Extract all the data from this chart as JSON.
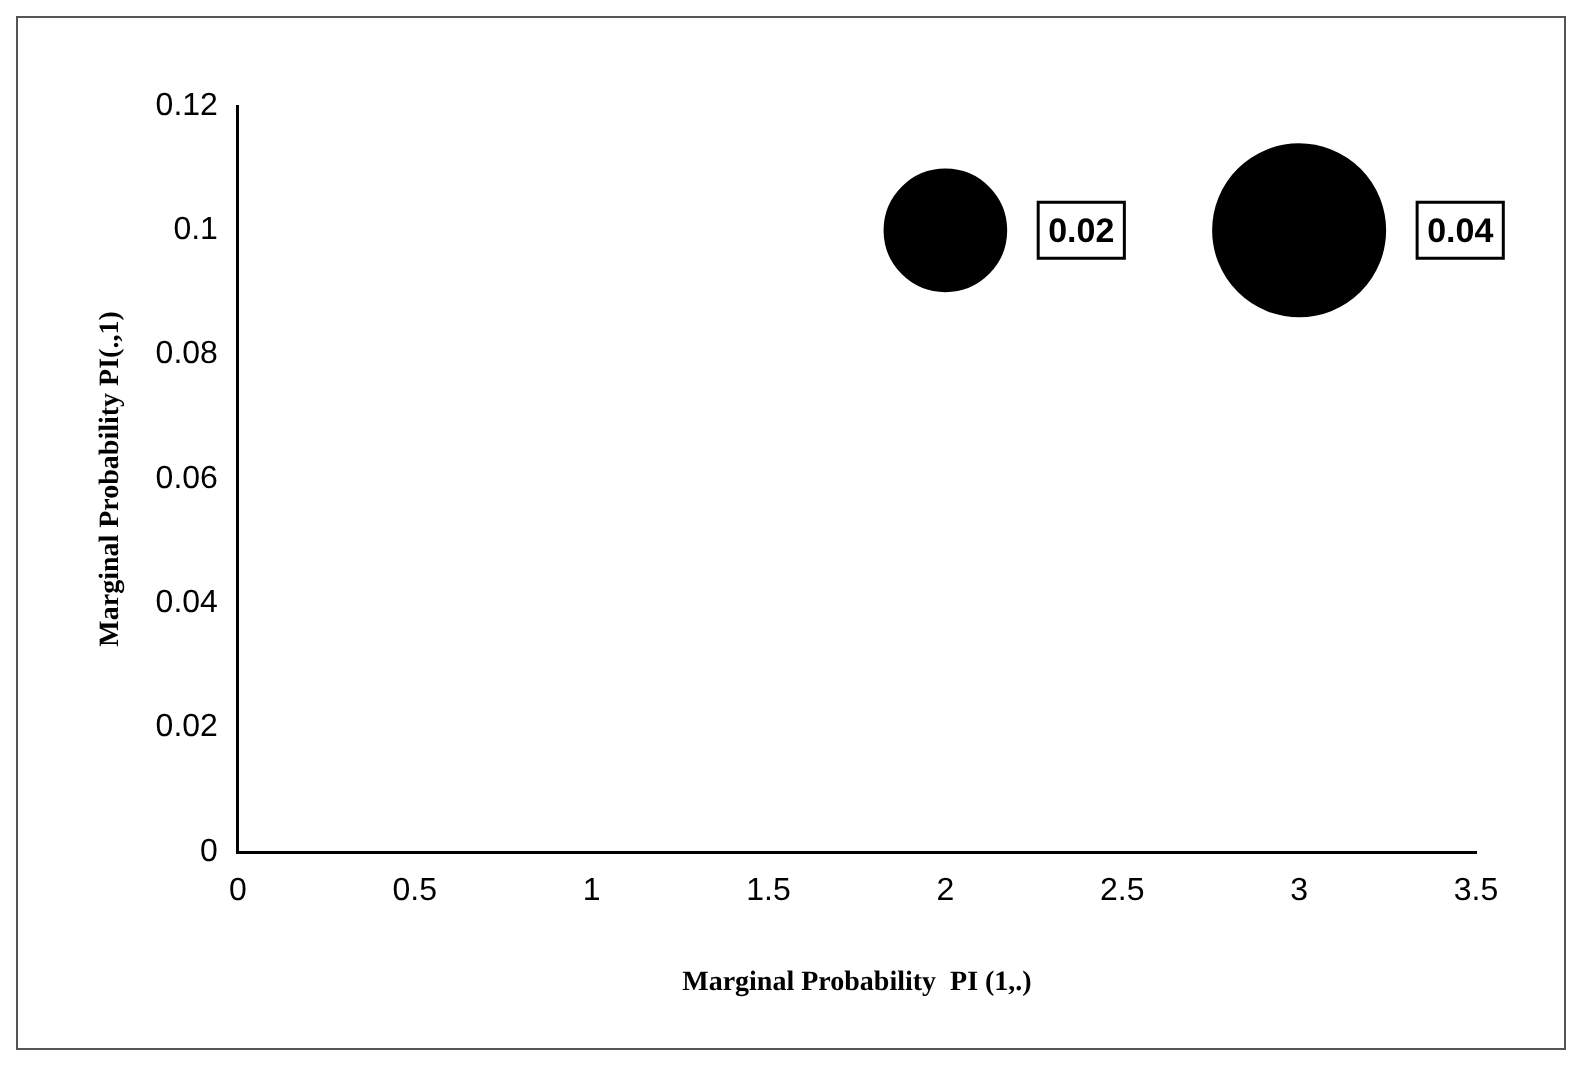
{
  "chart_data": {
    "type": "bubble",
    "xlabel": "Marginal Probability  PI (1,.)",
    "ylabel": "Marginal Probability PI(.,1)",
    "x": [
      2,
      3
    ],
    "values": [
      0.1,
      0.1
    ],
    "sizes": [
      0.02,
      0.04
    ],
    "value_labels": [
      "0.02",
      "0.04"
    ],
    "color": "#000000",
    "xlim": [
      0,
      3.5
    ],
    "xticks": [
      0,
      0.5,
      1,
      1.5,
      2,
      2.5,
      3,
      3.5
    ],
    "ylim": [
      0,
      0.12
    ],
    "yticks": [
      0,
      0.02,
      0.04,
      0.06,
      0.08,
      0.1,
      0.12
    ],
    "grid": false,
    "legend": false
  }
}
